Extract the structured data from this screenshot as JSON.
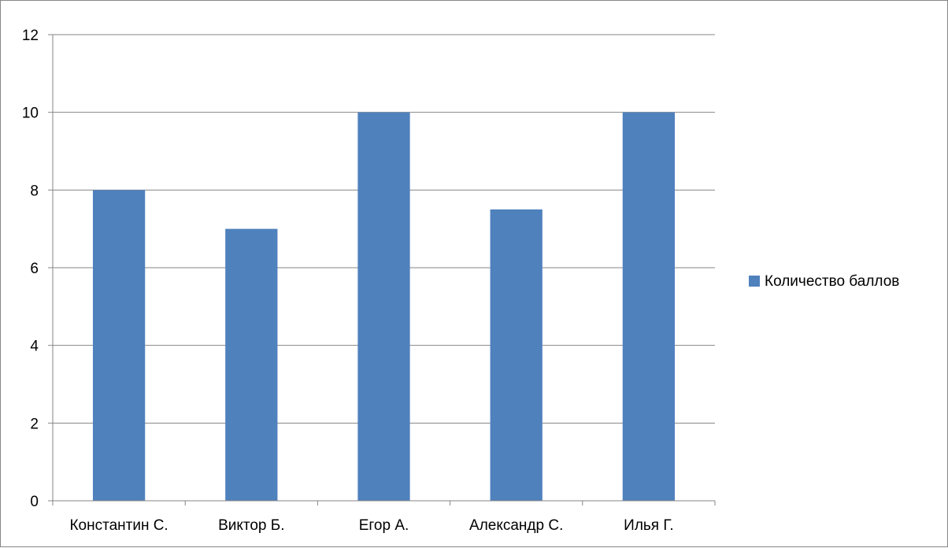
{
  "chart_data": {
    "type": "bar",
    "categories": [
      "Константин С.",
      "Виктор Б.",
      "Егор А.",
      "Александр С.",
      "Илья Г."
    ],
    "series": [
      {
        "name": "Количество баллов",
        "values": [
          8,
          7,
          10,
          7.5,
          10
        ],
        "color": "#4F81BD"
      }
    ],
    "ylim": [
      0,
      12
    ],
    "yticks": [
      0,
      2,
      4,
      6,
      8,
      10,
      12
    ],
    "grid": true,
    "legend_position": "right",
    "title": "",
    "xlabel": "",
    "ylabel": ""
  },
  "colors": {
    "bar": "#4F81BD",
    "gridline": "#868686",
    "frame": "#868686"
  }
}
